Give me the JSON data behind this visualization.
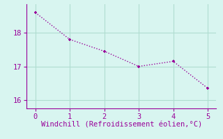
{
  "x": [
    0,
    1,
    2,
    3,
    4,
    5
  ],
  "y": [
    18.6,
    17.8,
    17.45,
    17.0,
    17.15,
    16.35
  ],
  "line_color": "#990099",
  "marker_color": "#990099",
  "bg_color": "#d8f5f0",
  "grid_color": "#b0ddd0",
  "xlabel": "Windchill (Refroidissement éolien,°C)",
  "xlabel_color": "#990099",
  "tick_color": "#990099",
  "axis_color": "#990099",
  "xlim": [
    -0.25,
    5.25
  ],
  "ylim": [
    15.75,
    18.85
  ],
  "xticks": [
    0,
    1,
    2,
    3,
    4,
    5
  ],
  "yticks": [
    16,
    17,
    18
  ],
  "xlabel_fontsize": 7.5,
  "tick_fontsize": 7.5,
  "marker_size": 3.5,
  "linewidth": 1.0
}
